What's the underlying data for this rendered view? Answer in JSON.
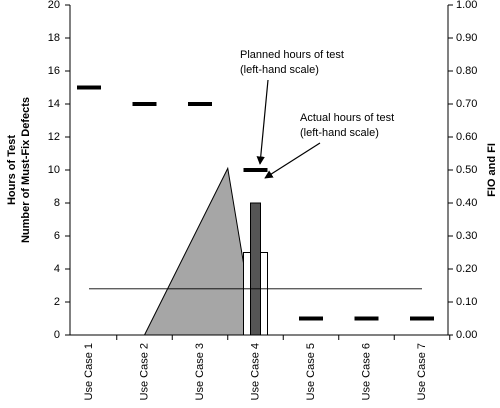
{
  "chart_data": {
    "type": "combo",
    "categories": [
      "Use Case 1",
      "Use Case 2",
      "Use Case 3",
      "Use Case 4",
      "Use Case 5",
      "Use Case 6",
      "Use Case 7"
    ],
    "ylabel": [
      "Hours of Test",
      "Number of Must-Fix Defects"
    ],
    "y2label": "FIO and FI",
    "ylim": [
      0,
      20
    ],
    "yticks": [
      0,
      2,
      4,
      6,
      8,
      10,
      12,
      14,
      16,
      18,
      20
    ],
    "y2lim": [
      0,
      1
    ],
    "y2ticks": [
      {
        "value": 0,
        "label": "0.00"
      },
      {
        "value": 0.1,
        "label": "0.10"
      },
      {
        "value": 0.2,
        "label": "0.20"
      },
      {
        "value": 0.3,
        "label": "0.30"
      },
      {
        "value": 0.4,
        "label": "0.40"
      },
      {
        "value": 0.5,
        "label": "0.50"
      },
      {
        "value": 0.6,
        "label": "0.60"
      },
      {
        "value": 0.7,
        "label": "0.70"
      },
      {
        "value": 0.8,
        "label": "0.80"
      },
      {
        "value": 0.9,
        "label": "0.90"
      },
      {
        "value": 1,
        "label": "1.00"
      }
    ],
    "series": [
      {
        "type": "area",
        "color": "#a6a6a6",
        "x": [
          2,
          3.5,
          4
        ],
        "values": [
          0,
          10.1,
          0
        ]
      },
      {
        "type": "bar",
        "color": "#ffffff",
        "values": [
          null,
          null,
          null,
          5,
          null,
          null,
          null
        ]
      },
      {
        "type": "bar",
        "color": "#555555",
        "values": [
          null,
          null,
          null,
          8,
          null,
          null,
          null
        ]
      },
      {
        "type": "dash",
        "color": "#000000",
        "values": [
          15,
          14,
          14,
          10,
          1,
          1,
          1
        ]
      },
      {
        "type": "line",
        "axis": "y2",
        "color": "#000000",
        "values": [
          0.14,
          0.14,
          0.14,
          0.14,
          0.14,
          0.14,
          0.14
        ]
      }
    ],
    "annotations": [
      {
        "lines": [
          "Planned hours of test",
          "(left-hand scale)"
        ]
      },
      {
        "lines": [
          "Actual hours of test",
          "(left-hand scale)"
        ]
      }
    ]
  }
}
